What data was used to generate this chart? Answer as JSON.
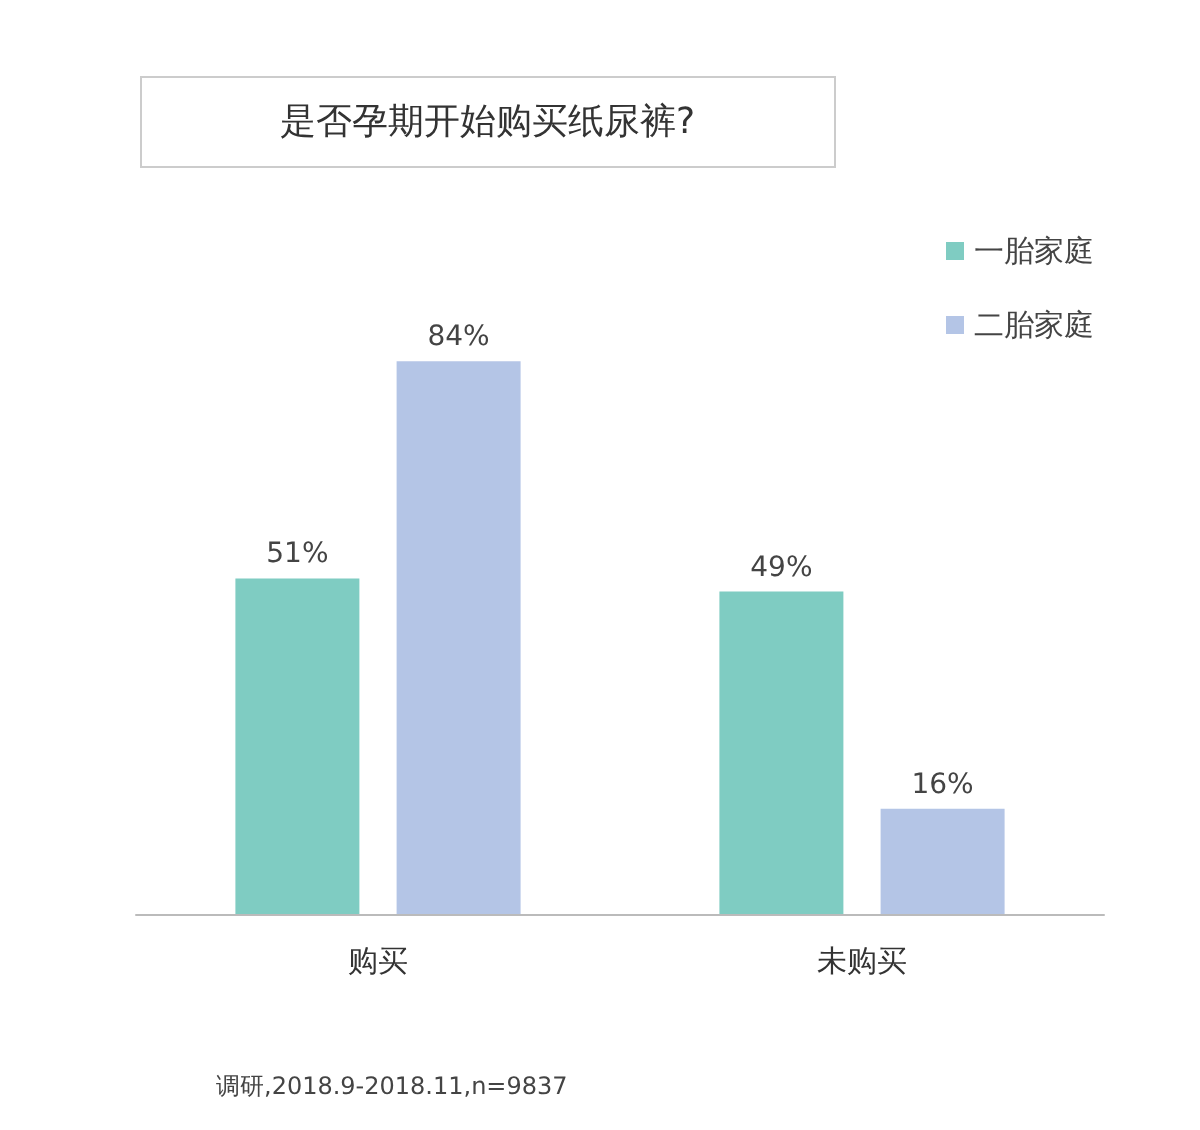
{
  "chart_data": {
    "type": "bar",
    "title": "是否孕期开始购买纸尿裤?",
    "categories": [
      "购买",
      "未购买"
    ],
    "series": [
      {
        "name": "一胎家庭",
        "color": "#7fccc2",
        "values": [
          51,
          49
        ],
        "value_labels": [
          "51%",
          "49%"
        ]
      },
      {
        "name": "二胎家庭",
        "color": "#b4c5e6",
        "values": [
          84,
          16
        ],
        "value_labels": [
          "84%",
          "16%"
        ]
      }
    ],
    "legend": "top right",
    "annotations": [
      "调研,2018.9-2018.11,n=9837"
    ]
  }
}
